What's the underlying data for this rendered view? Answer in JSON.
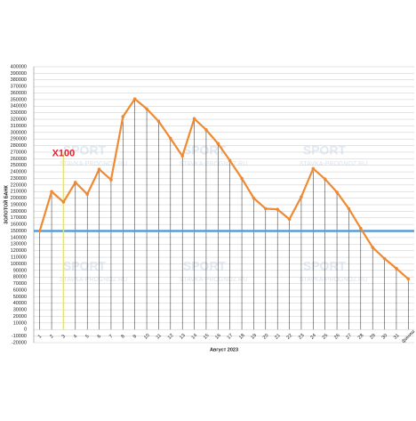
{
  "chart_data": {
    "type": "line",
    "y_label": "ЗОЛОТОЙ БАНК",
    "x_label": "Август 2023",
    "watermark": [
      "SPORT",
      "STAVKA-PROGNOZ.RU"
    ],
    "categories": [
      "1",
      "2",
      "3",
      "4",
      "5",
      "6",
      "7",
      "8",
      "9",
      "10",
      "11",
      "12",
      "13",
      "14",
      "15",
      "16",
      "17",
      "18",
      "19",
      "20",
      "21",
      "22",
      "23",
      "24",
      "25",
      "26",
      "27",
      "28",
      "29",
      "30",
      "31",
      "финиш"
    ],
    "series": [
      {
        "color": "#f08a32",
        "values": [
          150000,
          210000,
          194000,
          224000,
          206000,
          244000,
          228000,
          324000,
          351000,
          336000,
          317000,
          291000,
          264000,
          321000,
          304000,
          283000,
          257000,
          230000,
          200000,
          184000,
          183000,
          168000,
          202000,
          245000,
          229000,
          209000,
          184000,
          154000,
          125000,
          108000,
          93000,
          77000
        ]
      }
    ],
    "ylim": [
      -20000,
      400000
    ],
    "yticks": [
      -20000,
      -10000,
      0,
      10000,
      20000,
      30000,
      40000,
      50000,
      60000,
      70000,
      80000,
      90000,
      100000,
      110000,
      120000,
      130000,
      140000,
      150000,
      160000,
      170000,
      180000,
      190000,
      200000,
      210000,
      220000,
      230000,
      240000,
      250000,
      260000,
      270000,
      280000,
      290000,
      300000,
      310000,
      320000,
      330000,
      340000,
      350000,
      360000,
      370000,
      380000,
      390000,
      400000
    ],
    "grid": true,
    "drop_lines": true,
    "reference_line": {
      "value": 150000,
      "color": "#5b9bd5"
    },
    "annotation": {
      "text": "X100",
      "category": "3",
      "y": 268000,
      "color": "#e8202a",
      "line_color": "#f5f000"
    }
  }
}
